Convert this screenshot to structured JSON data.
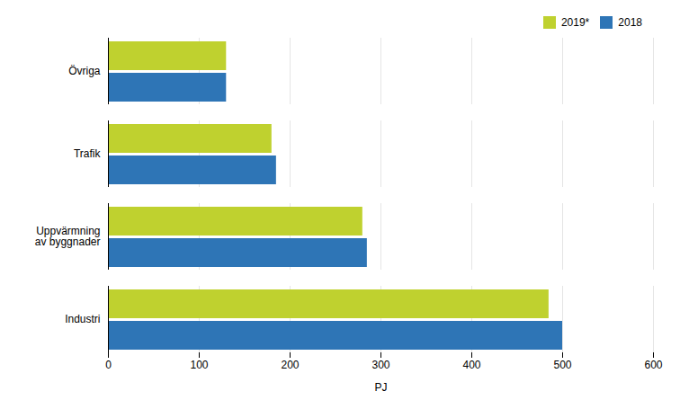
{
  "chart_data": {
    "type": "bar",
    "orientation": "horizontal",
    "categories": [
      "Industri",
      "Uppvärmning\nav byggnader",
      "Trafik",
      "Övriga"
    ],
    "series": [
      {
        "name": "2019*",
        "color": "#bfd12f",
        "values": [
          485,
          280,
          180,
          130
        ]
      },
      {
        "name": "2018",
        "color": "#2e75b6",
        "values": [
          500,
          285,
          185,
          130
        ]
      }
    ],
    "xlabel": "PJ",
    "xlim": [
      0,
      600
    ],
    "xticks": [
      0,
      100,
      200,
      300,
      400,
      500,
      600
    ],
    "grid": true,
    "legend": "upper right"
  }
}
